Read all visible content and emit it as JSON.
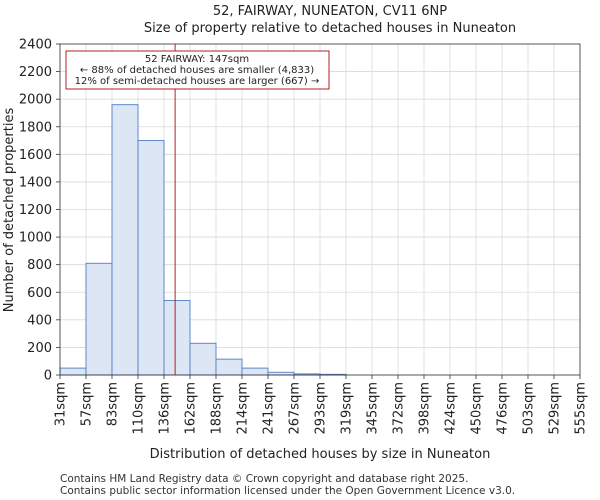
{
  "chart_data": {
    "type": "bar",
    "title": "52, FAIRWAY, NUNEATON, CV11 6NP",
    "subtitle": "Size of property relative to detached houses in Nuneaton",
    "xlabel": "Distribution of detached houses by size in Nuneaton",
    "ylabel": "Number of detached properties",
    "bin_edges": [
      31,
      57,
      83,
      110,
      136,
      162,
      188,
      214,
      241,
      267,
      293,
      319,
      345,
      372,
      398,
      424,
      450,
      476,
      503,
      529,
      555
    ],
    "x_tick_labels": [
      "31sqm",
      "57sqm",
      "83sqm",
      "110sqm",
      "136sqm",
      "162sqm",
      "188sqm",
      "214sqm",
      "241sqm",
      "267sqm",
      "293sqm",
      "319sqm",
      "345sqm",
      "372sqm",
      "398sqm",
      "424sqm",
      "450sqm",
      "476sqm",
      "503sqm",
      "529sqm",
      "555sqm"
    ],
    "values": [
      50,
      810,
      1960,
      1700,
      540,
      230,
      115,
      50,
      20,
      8,
      5,
      0,
      0,
      0,
      0,
      0,
      0,
      0,
      0,
      0
    ],
    "ylim": [
      0,
      2400
    ],
    "y_ticks": [
      0,
      200,
      400,
      600,
      800,
      1000,
      1200,
      1400,
      1600,
      1800,
      2000,
      2200,
      2400
    ],
    "grid": true,
    "property_marker": {
      "value": 147
    },
    "annotation": {
      "line1": "52 FAIRWAY: 147sqm",
      "line2": "← 88% of detached houses are smaller (4,833)",
      "line3": "12% of semi-detached houses are larger (667) →"
    },
    "colors": {
      "bar_fill": "#dce6f4",
      "bar_edge": "#4f7fc1",
      "marker": "#b22222",
      "grid": "#d9d9d9"
    }
  },
  "footer": {
    "line1": "Contains HM Land Registry data © Crown copyright and database right 2025.",
    "line2": "Contains public sector information licensed under the Open Government Licence v3.0."
  }
}
